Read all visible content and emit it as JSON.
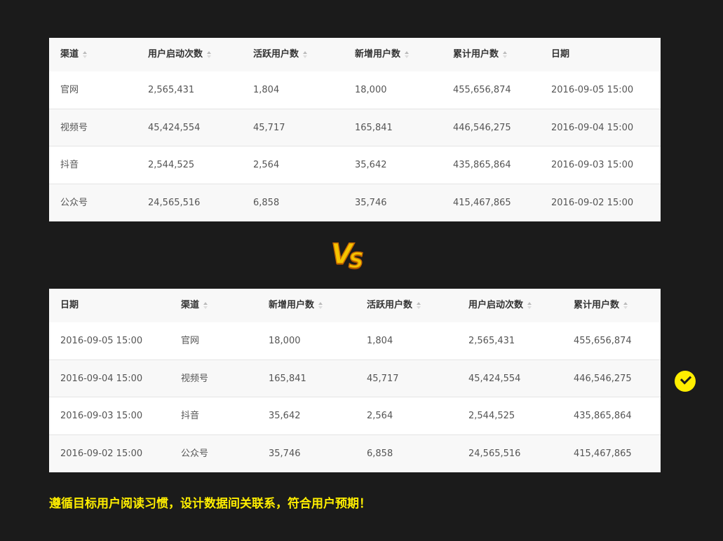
{
  "table1": {
    "headers": [
      "渠道",
      "用户启动次数",
      "活跃用户数",
      "新增用户数",
      "累计用户数",
      "日期"
    ],
    "sortable": [
      true,
      true,
      true,
      true,
      true,
      false
    ],
    "rows": [
      [
        "官网",
        "2,565,431",
        "1,804",
        "18,000",
        "455,656,874",
        "2016-09-05 15:00"
      ],
      [
        "视频号",
        "45,424,554",
        "45,717",
        "165,841",
        "446,546,275",
        "2016-09-04 15:00"
      ],
      [
        "抖音",
        "2,544,525",
        "2,564",
        "35,642",
        "435,865,864",
        "2016-09-03 15:00"
      ],
      [
        "公众号",
        "24,565,516",
        "6,858",
        "35,746",
        "415,467,865",
        "2016-09-02 15:00"
      ]
    ]
  },
  "vs_logo": "VS",
  "table2": {
    "headers": [
      "日期",
      "渠道",
      "新增用户数",
      "活跃用户数",
      "用户启动次数",
      "累计用户数"
    ],
    "sortable": [
      false,
      true,
      true,
      true,
      true,
      true
    ],
    "rows": [
      [
        "2016-09-05 15:00",
        "官网",
        "18,000",
        "1,804",
        "2,565,431",
        "455,656,874"
      ],
      [
        "2016-09-04 15:00",
        "视频号",
        "165,841",
        "45,717",
        "45,424,554",
        "446,546,275"
      ],
      [
        "2016-09-03 15:00",
        "抖音",
        "35,642",
        "2,564",
        "2,544,525",
        "435,865,864"
      ],
      [
        "2016-09-02 15:00",
        "公众号",
        "35,746",
        "6,858",
        "24,565,516",
        "415,467,865"
      ]
    ]
  },
  "check_icon": "check-circle-icon",
  "accent_color": "#ffee00",
  "caption": "遵循目标用户阅读习惯，设计数据间关联系，符合用户预期！"
}
